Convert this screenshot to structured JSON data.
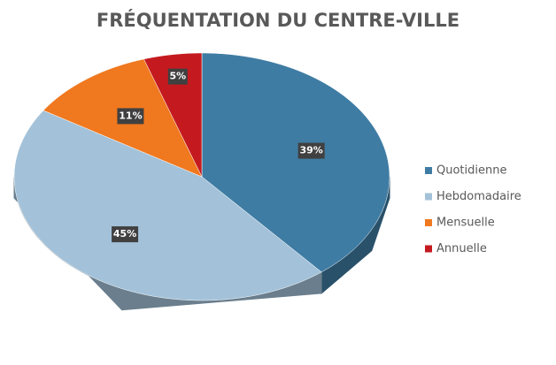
{
  "chart_data": {
    "type": "pie",
    "title": "Fréquentation du Centre-Ville",
    "categories": [
      "Quotidienne",
      "Hebdomadaire",
      "Mensuelle",
      "Annuelle"
    ],
    "values": [
      39,
      45,
      11,
      5
    ],
    "value_labels": [
      "39%",
      "45%",
      "11%",
      "5%"
    ],
    "colors": [
      "#3f7ca3",
      "#a3c2d9",
      "#f0781e",
      "#c41a1f"
    ],
    "legend": "right"
  }
}
